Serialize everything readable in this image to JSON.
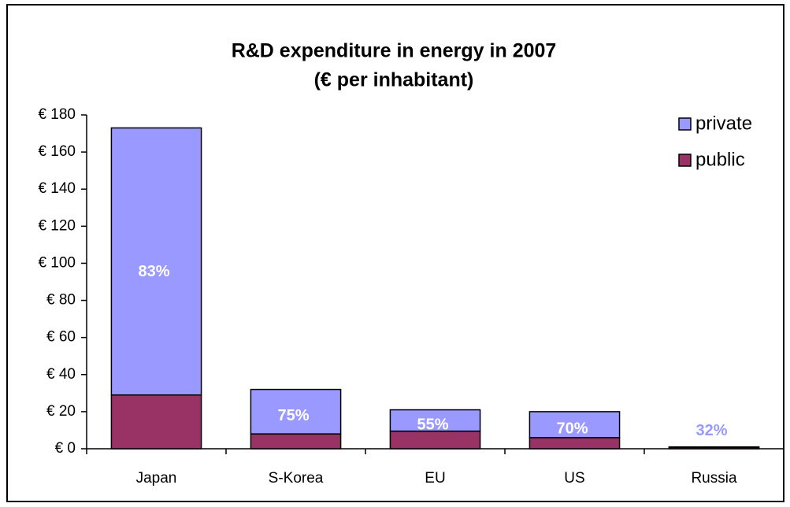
{
  "chart_data": {
    "type": "stacked_bar",
    "title": [
      "R&D expenditure in energy in 2007",
      "(€ per inhabitant)"
    ],
    "categories": [
      "Japan",
      "S-Korea",
      "EU",
      "US",
      "Russia"
    ],
    "series": [
      {
        "name": "public",
        "color": "#993366",
        "values": [
          29,
          8,
          9.5,
          6,
          0.7
        ]
      },
      {
        "name": "private",
        "color": "#9999ff",
        "values": [
          144,
          24,
          11.5,
          14,
          0.3
        ]
      }
    ],
    "annotations": [
      "83%",
      "75%",
      "55%",
      "70%",
      "32%"
    ],
    "ylim": [
      0,
      180
    ],
    "yticks": [
      {
        "value": 0,
        "label": "€ 0"
      },
      {
        "value": 20,
        "label": "€ 20"
      },
      {
        "value": 40,
        "label": "€ 40"
      },
      {
        "value": 60,
        "label": "€ 60"
      },
      {
        "value": 80,
        "label": "€ 80"
      },
      {
        "value": 100,
        "label": "€ 100"
      },
      {
        "value": 120,
        "label": "€ 120"
      },
      {
        "value": 140,
        "label": "€ 140"
      },
      {
        "value": 160,
        "label": "€ 160"
      },
      {
        "value": 180,
        "label": "€ 180"
      }
    ],
    "legend": "top-right"
  }
}
